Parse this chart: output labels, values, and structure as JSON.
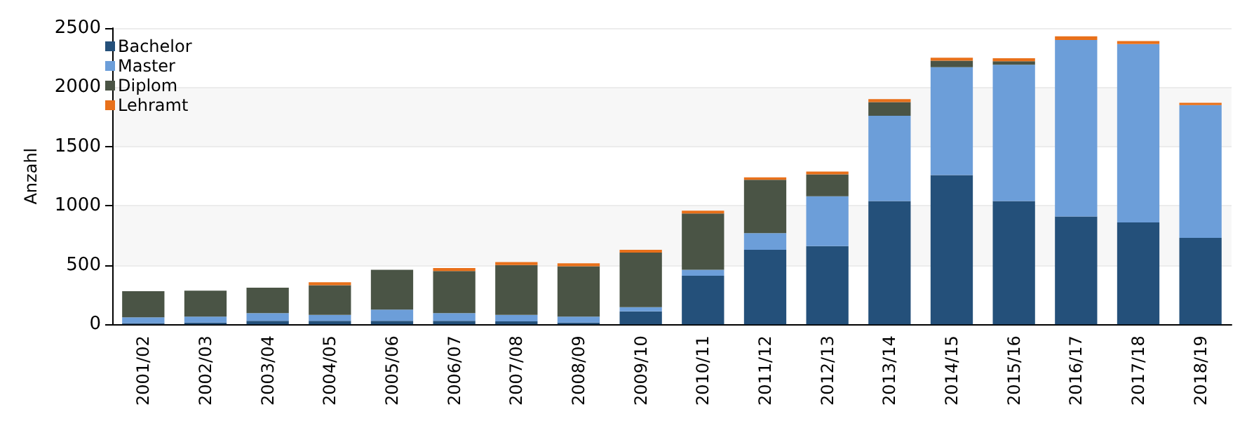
{
  "chart_data": {
    "type": "bar",
    "stacked": true,
    "ylabel": "Anzahl",
    "categories": [
      "2001/02",
      "2002/03",
      "2003/04",
      "2004/05",
      "2005/06",
      "2006/07",
      "2007/08",
      "2008/09",
      "2009/10",
      "2010/11",
      "2011/12",
      "2012/13",
      "2013/14",
      "2014/15",
      "2015/16",
      "2016/17",
      "2017/18",
      "2018/19"
    ],
    "series": [
      {
        "name": "Bachelor",
        "color": "#24507a",
        "values": [
          10,
          15,
          30,
          30,
          30,
          30,
          25,
          15,
          110,
          410,
          630,
          660,
          1040,
          1260,
          1040,
          910,
          860,
          730
        ]
      },
      {
        "name": "Master",
        "color": "#6c9ed9",
        "values": [
          50,
          50,
          65,
          50,
          95,
          65,
          55,
          50,
          35,
          50,
          140,
          420,
          720,
          910,
          1150,
          1490,
          1505,
          1120
        ]
      },
      {
        "name": "Diplom",
        "color": "#4a5445",
        "values": [
          220,
          220,
          215,
          250,
          335,
          355,
          420,
          425,
          460,
          475,
          450,
          185,
          115,
          55,
          30,
          0,
          0,
          0
        ]
      },
      {
        "name": "Lehramt",
        "color": "#e8701a",
        "values": [
          0,
          0,
          0,
          25,
          0,
          25,
          25,
          25,
          25,
          25,
          20,
          25,
          25,
          25,
          25,
          30,
          25,
          20
        ]
      }
    ],
    "ylim": [
      0,
      2500
    ],
    "yticks": [
      0,
      500,
      1000,
      1500,
      2000,
      2500
    ],
    "grid": "y",
    "legend": "top left"
  }
}
